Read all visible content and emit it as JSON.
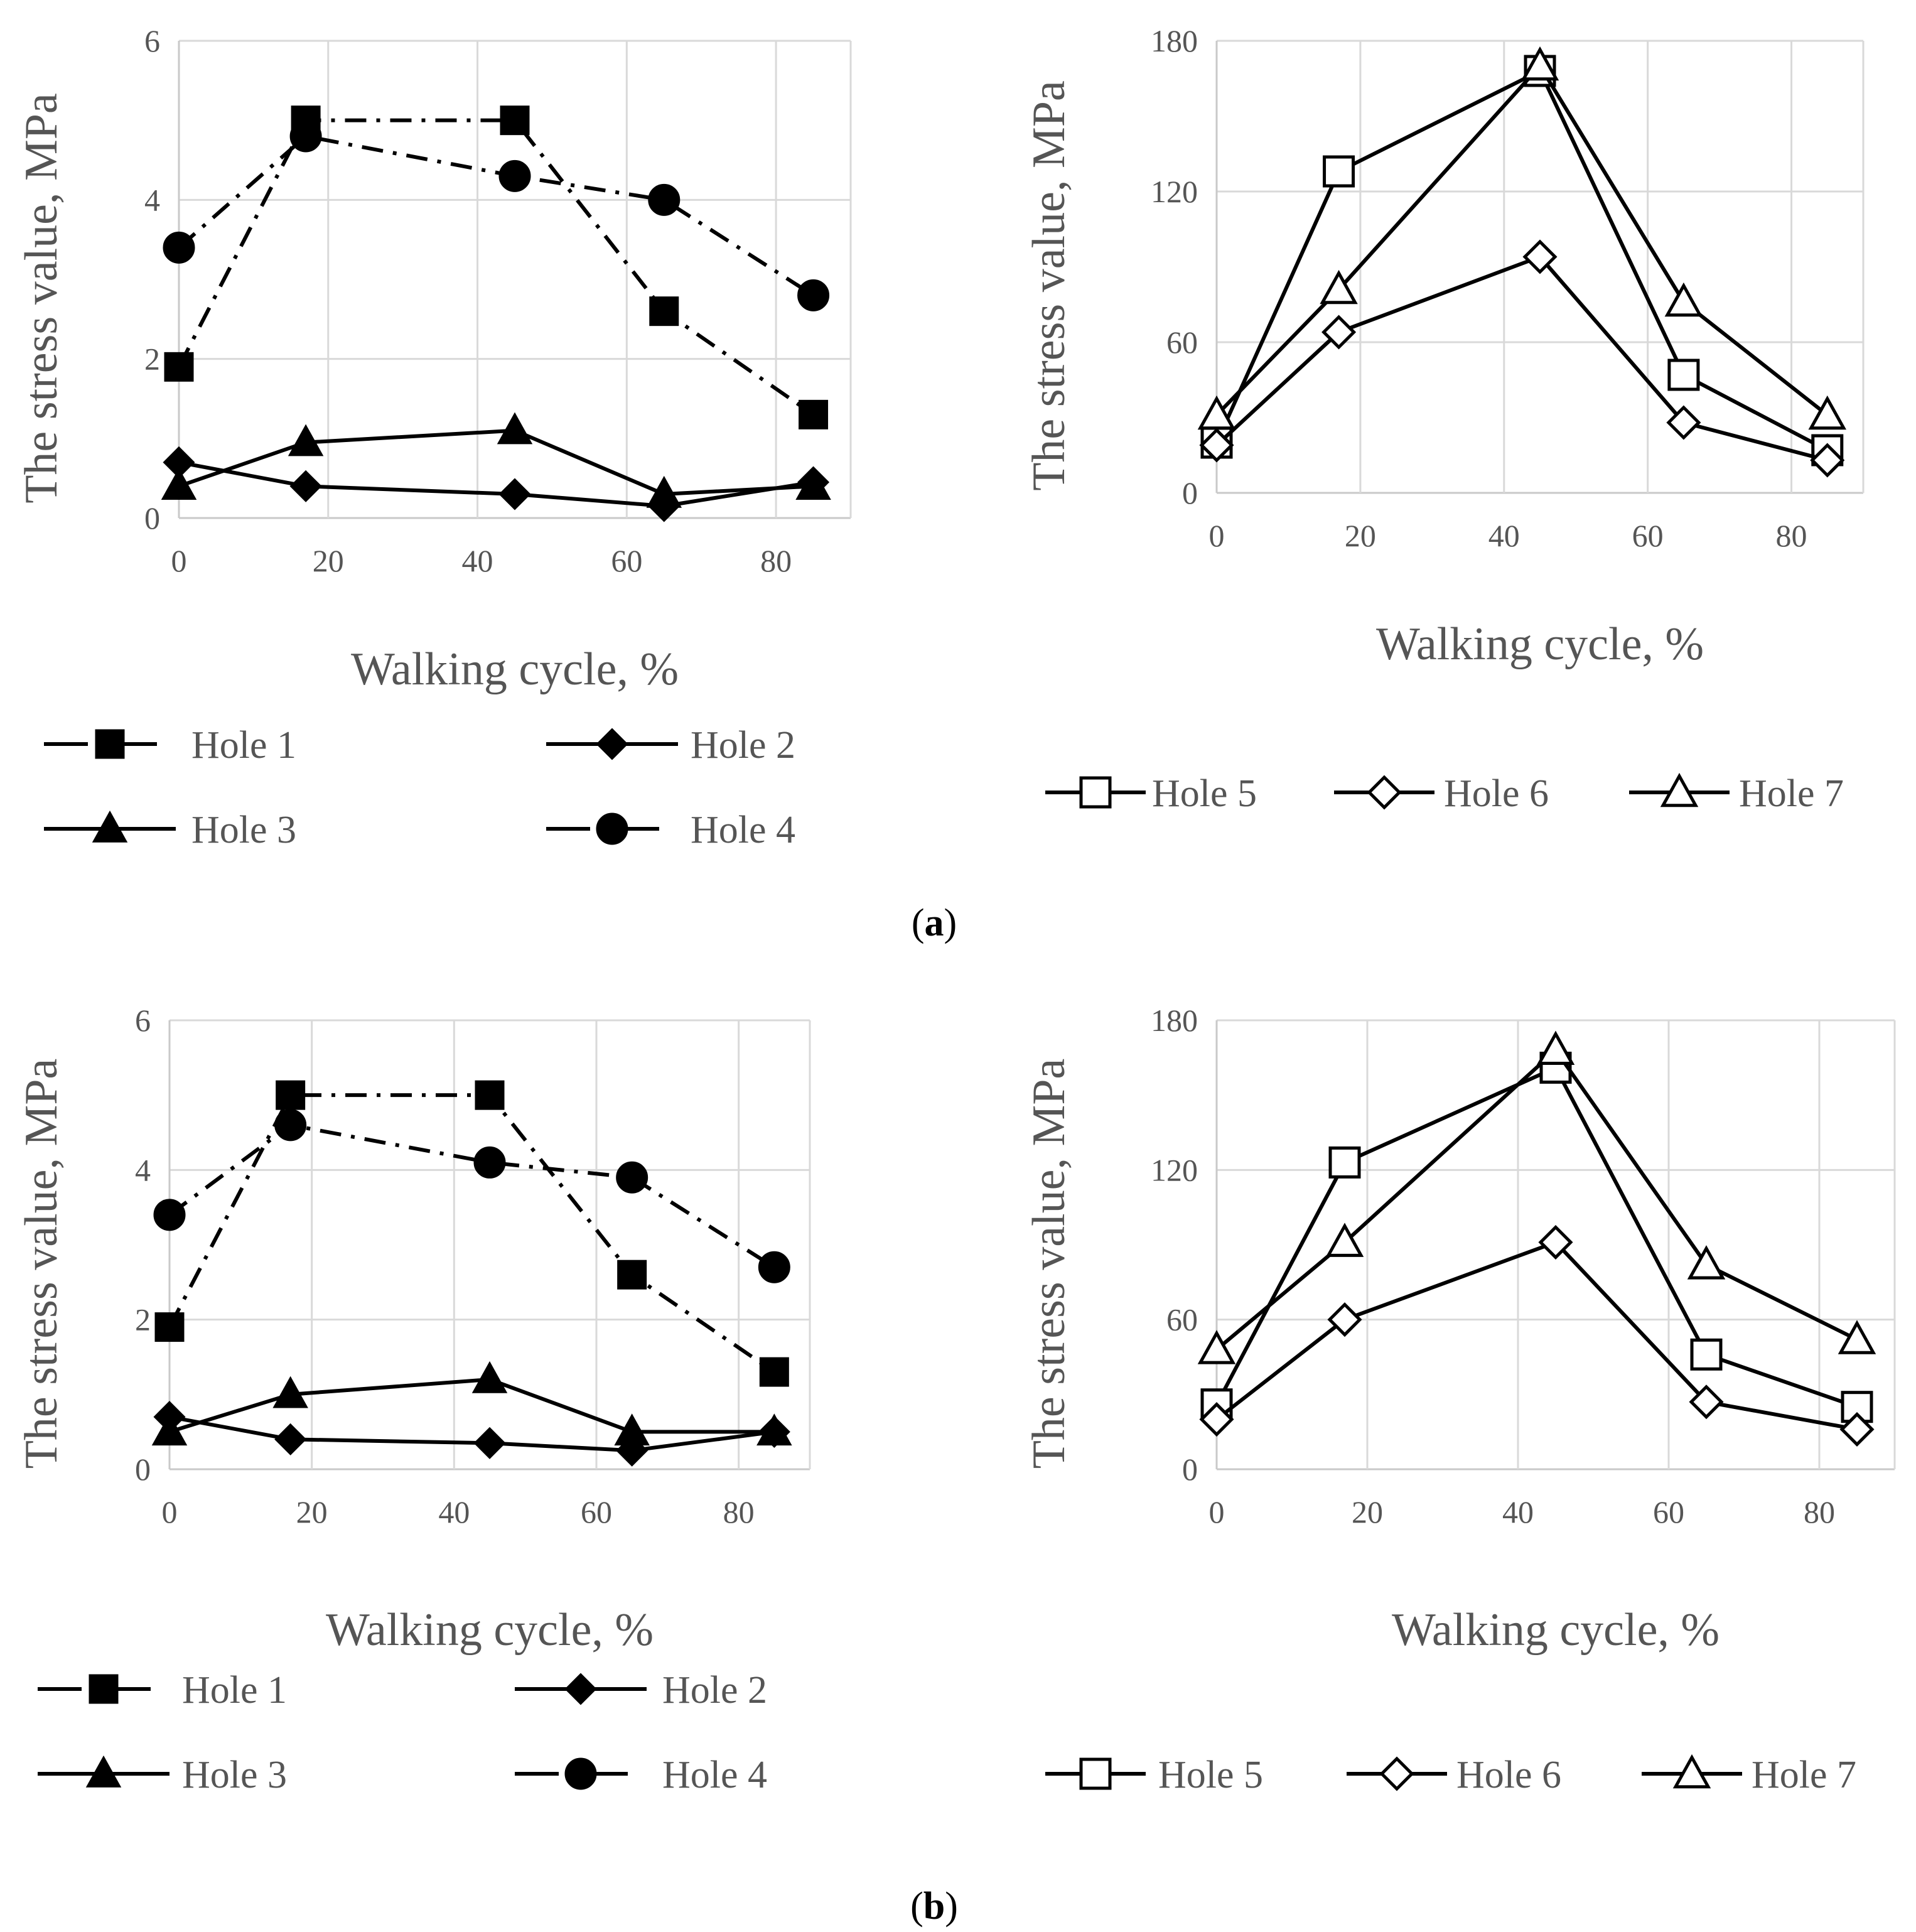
{
  "colors": {
    "ink": "#000000",
    "grid": "#d9d9d9",
    "text": "#555555",
    "background": "#ffffff"
  },
  "captions": {
    "a": "a",
    "b": "b"
  },
  "chart_data": [
    {
      "id": "a-left",
      "type": "line",
      "xlabel": "Walking cycle, %",
      "ylabel": "The stress value, MPa",
      "xlim": [
        0,
        90
      ],
      "ylim": [
        0,
        6
      ],
      "xticks": [
        "0",
        "20",
        "40",
        "60",
        "80"
      ],
      "yticks": [
        "0",
        "2",
        "4",
        "6"
      ],
      "grid": "vertical and horizontal",
      "legend_position": "bottom",
      "legend_columns": 2,
      "x": [
        0,
        17,
        45,
        65,
        85
      ],
      "series": [
        {
          "name": "Hole 1",
          "marker": "filled-square",
          "dash": "dash-dot",
          "values": [
            1.9,
            5.0,
            5.0,
            2.6,
            1.3
          ]
        },
        {
          "name": "Hole 2",
          "marker": "filled-diamond",
          "dash": "solid",
          "values": [
            0.7,
            0.4,
            0.3,
            0.15,
            0.45
          ]
        },
        {
          "name": "Hole 3",
          "marker": "filled-triangle",
          "dash": "solid",
          "values": [
            0.4,
            0.95,
            1.1,
            0.3,
            0.4
          ]
        },
        {
          "name": "Hole 4",
          "marker": "filled-circle",
          "dash": "dash-dot",
          "values": [
            3.4,
            4.8,
            4.3,
            4.0,
            2.8
          ]
        }
      ]
    },
    {
      "id": "a-right",
      "type": "line",
      "xlabel": "Walking cycle, %",
      "ylabel": "The stress value, MPa",
      "xlim": [
        0,
        90
      ],
      "ylim": [
        0,
        180
      ],
      "xticks": [
        "0",
        "20",
        "40",
        "60",
        "80"
      ],
      "yticks": [
        "0",
        "60",
        "120",
        "180"
      ],
      "grid": "vertical and horizontal",
      "legend_position": "bottom",
      "legend_columns": 3,
      "x": [
        0,
        17,
        45,
        65,
        85
      ],
      "series": [
        {
          "name": "Hole 5",
          "marker": "open-square",
          "dash": "solid",
          "values": [
            20,
            128,
            168,
            47,
            17
          ]
        },
        {
          "name": "Hole 6",
          "marker": "open-diamond",
          "dash": "solid",
          "values": [
            19,
            64,
            94,
            28,
            13
          ]
        },
        {
          "name": "Hole 7",
          "marker": "open-triangle",
          "dash": "solid",
          "values": [
            31,
            81,
            170,
            76,
            31
          ]
        }
      ]
    },
    {
      "id": "b-left",
      "type": "line",
      "xlabel": "Walking cycle, %",
      "ylabel": "The stress value, MPa",
      "xlim": [
        0,
        90
      ],
      "ylim": [
        0,
        6
      ],
      "xticks": [
        "0",
        "20",
        "40",
        "60",
        "80"
      ],
      "yticks": [
        "0",
        "2",
        "4",
        "6"
      ],
      "grid": "vertical and horizontal",
      "legend_position": "bottom",
      "legend_columns": 2,
      "x": [
        0,
        17,
        45,
        65,
        85
      ],
      "series": [
        {
          "name": "Hole 1",
          "marker": "filled-square",
          "dash": "dash-dot",
          "values": [
            1.9,
            5.0,
            5.0,
            2.6,
            1.3
          ]
        },
        {
          "name": "Hole 2",
          "marker": "filled-diamond",
          "dash": "solid",
          "values": [
            0.7,
            0.4,
            0.35,
            0.25,
            0.5
          ]
        },
        {
          "name": "Hole 3",
          "marker": "filled-triangle",
          "dash": "solid",
          "values": [
            0.5,
            1.0,
            1.2,
            0.5,
            0.5
          ]
        },
        {
          "name": "Hole 4",
          "marker": "filled-circle",
          "dash": "dash-dot",
          "values": [
            3.4,
            4.6,
            4.1,
            3.9,
            2.7
          ]
        }
      ]
    },
    {
      "id": "b-right",
      "type": "line",
      "xlabel": "Walking cycle, %",
      "ylabel": "The stress value, MPa",
      "xlim": [
        0,
        90
      ],
      "ylim": [
        0,
        180
      ],
      "xticks": [
        "0",
        "20",
        "40",
        "60",
        "80"
      ],
      "yticks": [
        "0",
        "60",
        "120",
        "180"
      ],
      "grid": "vertical and horizontal",
      "legend_position": "bottom",
      "legend_columns": 3,
      "x": [
        0,
        17,
        45,
        65,
        85
      ],
      "series": [
        {
          "name": "Hole 5",
          "marker": "open-square",
          "dash": "solid",
          "values": [
            26,
            123,
            161,
            46,
            25
          ]
        },
        {
          "name": "Hole 6",
          "marker": "open-diamond",
          "dash": "solid",
          "values": [
            20,
            60,
            91,
            27,
            16
          ]
        },
        {
          "name": "Hole 7",
          "marker": "open-triangle",
          "dash": "solid",
          "values": [
            48,
            91,
            168,
            82,
            52
          ]
        }
      ]
    }
  ]
}
